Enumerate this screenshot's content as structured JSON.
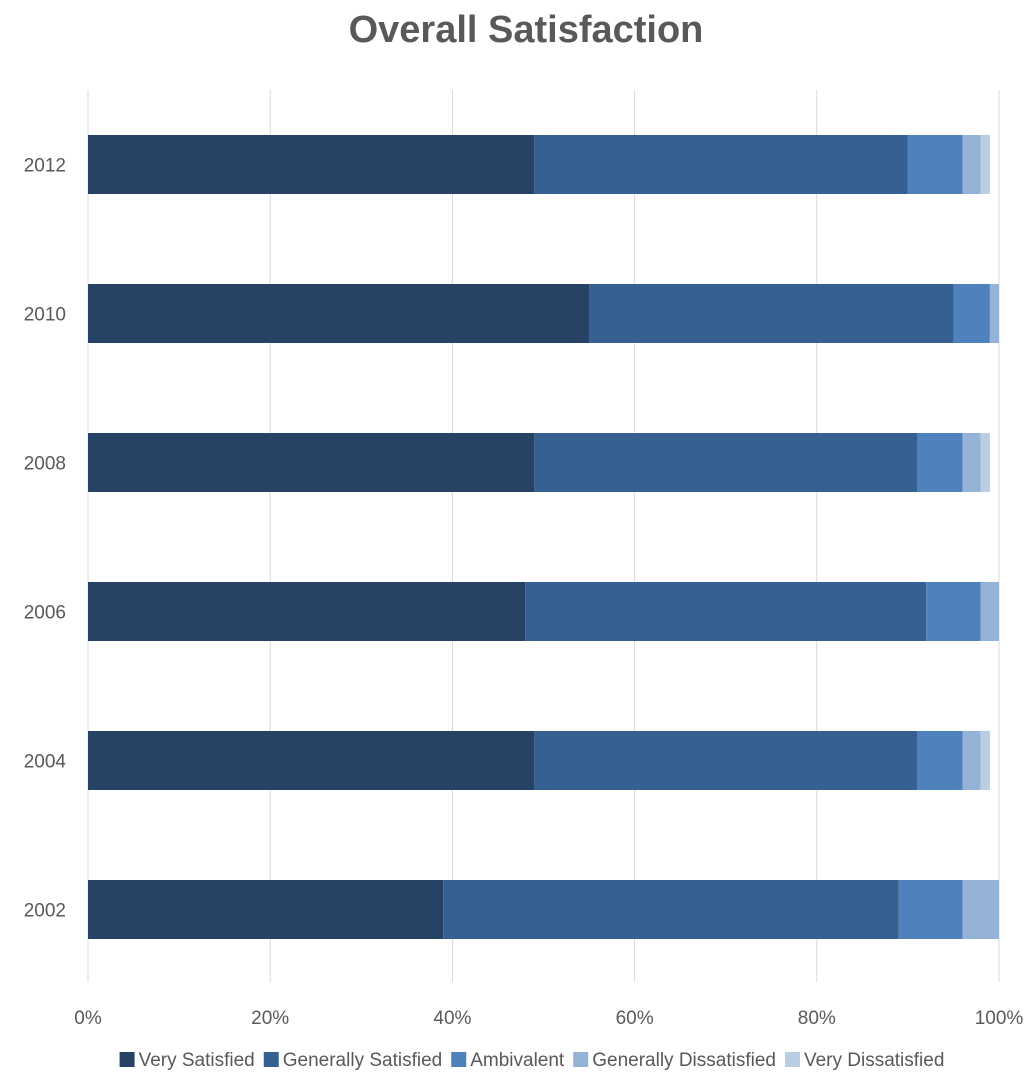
{
  "chart_data": {
    "type": "bar",
    "orientation": "horizontal",
    "stacked": true,
    "title": "Overall Satisfaction",
    "xlabel": "",
    "ylabel": "",
    "categories": [
      "2012",
      "2010",
      "2008",
      "2006",
      "2004",
      "2002"
    ],
    "x_ticks": [
      "0%",
      "20%",
      "40%",
      "60%",
      "80%",
      "100%"
    ],
    "xlim": [
      0,
      100
    ],
    "grid": "vertical",
    "legend_position": "bottom",
    "series": [
      {
        "name": "Very Satisfied",
        "color": "#264264",
        "values": [
          49,
          55,
          49,
          48,
          49,
          39
        ]
      },
      {
        "name": "Generally Satisfied",
        "color": "#376092",
        "values": [
          41,
          40,
          42,
          44,
          42,
          50
        ]
      },
      {
        "name": "Ambivalent",
        "color": "#4f81bd",
        "values": [
          6,
          4,
          5,
          6,
          5,
          7
        ]
      },
      {
        "name": "Generally Dissatisfied",
        "color": "#95b3d7",
        "values": [
          2,
          1,
          2,
          2,
          2,
          4
        ]
      },
      {
        "name": "Very Dissatisfied",
        "color": "#b9cde5",
        "values": [
          1,
          0,
          1,
          0,
          1,
          0
        ]
      }
    ]
  }
}
